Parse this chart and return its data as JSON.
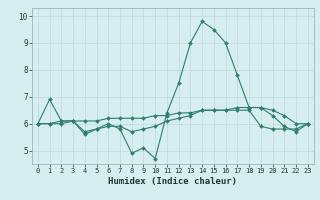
{
  "title": "",
  "xlabel": "Humidex (Indice chaleur)",
  "ylabel": "",
  "xlim": [
    -0.5,
    23.5
  ],
  "ylim": [
    4.5,
    10.3
  ],
  "yticks": [
    5,
    6,
    7,
    8,
    9,
    10
  ],
  "xticks": [
    0,
    1,
    2,
    3,
    4,
    5,
    6,
    7,
    8,
    9,
    10,
    11,
    12,
    13,
    14,
    15,
    16,
    17,
    18,
    19,
    20,
    21,
    22,
    23
  ],
  "background_color": "#d6eef0",
  "grid_color": "#c0d8da",
  "line_color": "#2e7d6e",
  "lines": [
    {
      "x": [
        0,
        1,
        2,
        3,
        4,
        5,
        6,
        7,
        8,
        9,
        10,
        11,
        12,
        13,
        14,
        15,
        16,
        17,
        18,
        19,
        20,
        21,
        22,
        23
      ],
      "y": [
        6.0,
        6.9,
        6.1,
        6.1,
        5.6,
        5.8,
        6.0,
        5.8,
        4.9,
        5.1,
        4.7,
        6.4,
        7.5,
        9.0,
        9.8,
        9.5,
        9.0,
        7.8,
        6.6,
        6.6,
        6.3,
        5.9,
        5.7,
        6.0
      ]
    },
    {
      "x": [
        0,
        1,
        2,
        3,
        4,
        5,
        6,
        7,
        8,
        9,
        10,
        11,
        12,
        13,
        14,
        15,
        16,
        17,
        18,
        19,
        20,
        21,
        22,
        23
      ],
      "y": [
        6.0,
        6.0,
        6.1,
        6.1,
        6.1,
        6.1,
        6.2,
        6.2,
        6.2,
        6.2,
        6.3,
        6.3,
        6.4,
        6.4,
        6.5,
        6.5,
        6.5,
        6.6,
        6.6,
        6.6,
        6.5,
        6.3,
        6.0,
        6.0
      ]
    },
    {
      "x": [
        0,
        1,
        2,
        3,
        4,
        5,
        6,
        7,
        8,
        9,
        10,
        11,
        12,
        13,
        14,
        15,
        16,
        17,
        18,
        19,
        20,
        21,
        22,
        23
      ],
      "y": [
        6.0,
        6.0,
        6.0,
        6.1,
        5.7,
        5.8,
        5.9,
        5.9,
        5.7,
        5.8,
        5.9,
        6.1,
        6.2,
        6.3,
        6.5,
        6.5,
        6.5,
        6.5,
        6.5,
        5.9,
        5.8,
        5.8,
        5.8,
        6.0
      ]
    }
  ]
}
